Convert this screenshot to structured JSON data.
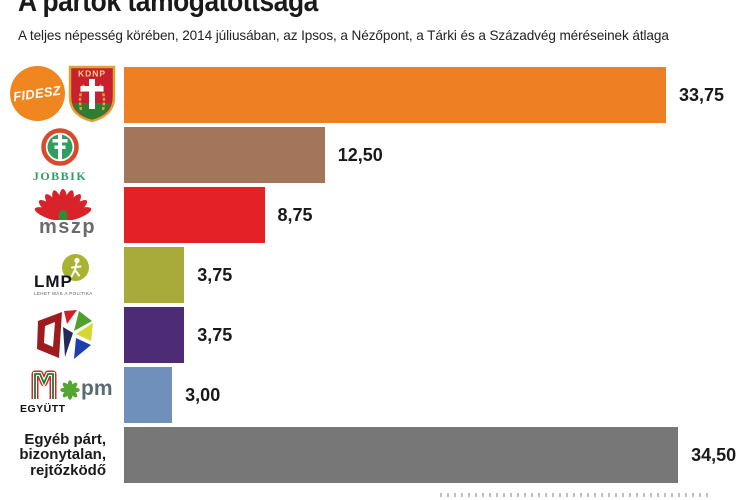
{
  "header": {
    "title": "A pártok támogatottsága",
    "subtitle": "A teljes népesség körében, 2014 júliusában, az Ipsos, a Nézőpont, a Tárki és a Századvég méréseinek átlaga"
  },
  "chart_data": {
    "type": "bar",
    "orientation": "horizontal",
    "title": "A pártok támogatottsága",
    "unit": "percent of total population",
    "decimal_style": "comma",
    "categories": [
      "Fidesz–KDNP",
      "Jobbik",
      "MSZP",
      "LMP",
      "DK",
      "Együtt–PM",
      "Egyéb párt, bizonytalan, rejtőzködő"
    ],
    "values": [
      33.75,
      12.5,
      8.75,
      3.75,
      3.75,
      3.0,
      34.5
    ],
    "value_labels": [
      "33,75",
      "12,50",
      "8,75",
      "3,75",
      "3,75",
      "3,00",
      "34,50"
    ],
    "bar_colors": [
      "#ee8023",
      "#a3765b",
      "#e32126",
      "#a8ab39",
      "#4d2c75",
      "#7090bc",
      "#777777"
    ],
    "xlim": [
      0,
      34.5
    ],
    "grid": false,
    "legend": false
  },
  "other_category": {
    "line1": "Egyéb párt,",
    "line2": "bizonytalan,",
    "line3": "rejtőzködő"
  },
  "logos": {
    "fidesz": "FIDESZ",
    "kdnp": "KDNP",
    "jobbik": "JOBBIK",
    "mszp": "mszp",
    "lmp": "LMP",
    "lmp_tagline": "LEHET MÁS A POLITIKA",
    "egyutt": "EGYÜTT",
    "pm": "pm"
  }
}
